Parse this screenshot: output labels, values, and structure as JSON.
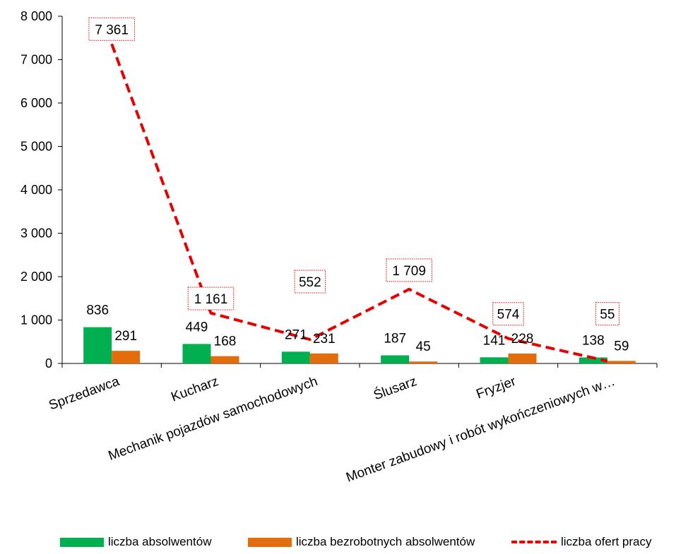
{
  "chart_data": {
    "type": "bar",
    "categories": [
      "Sprzedawca",
      "Kucharz",
      "Mechanik pojazdów samochodowych",
      "Ślusarz",
      "Fryzjer",
      "Monter zabudowy i robót wykończeniowych w…"
    ],
    "series": [
      {
        "name": "liczba absolwentów",
        "type": "bar",
        "color": "#00b050",
        "values": [
          836,
          449,
          271,
          187,
          141,
          138
        ],
        "labels": [
          "836",
          "449",
          "271",
          "187",
          "141",
          "138"
        ]
      },
      {
        "name": "liczba bezrobotnych absolwentów",
        "type": "bar",
        "color": "#e46c0a",
        "values": [
          291,
          168,
          231,
          45,
          228,
          59
        ],
        "labels": [
          "291",
          "168",
          "231",
          "45",
          "228",
          "59"
        ]
      },
      {
        "name": "liczba ofert pracy",
        "type": "line",
        "style": "dashed",
        "color": "#e60000",
        "values": [
          7361,
          1161,
          552,
          1709,
          574,
          55
        ],
        "labels": [
          "7 361",
          "1 161",
          "552",
          "1 709",
          "574",
          "55"
        ]
      }
    ],
    "ylim": [
      0,
      8000
    ],
    "yticks": [
      0,
      1000,
      2000,
      3000,
      4000,
      5000,
      6000,
      7000,
      8000
    ],
    "ytick_labels": [
      "0",
      "1 000",
      "2 000",
      "3 000",
      "4 000",
      "5 000",
      "6 000",
      "7 000",
      "8 000"
    ],
    "title": "",
    "xlabel": "",
    "ylabel": "",
    "legend_position": "bottom",
    "grid": false
  }
}
